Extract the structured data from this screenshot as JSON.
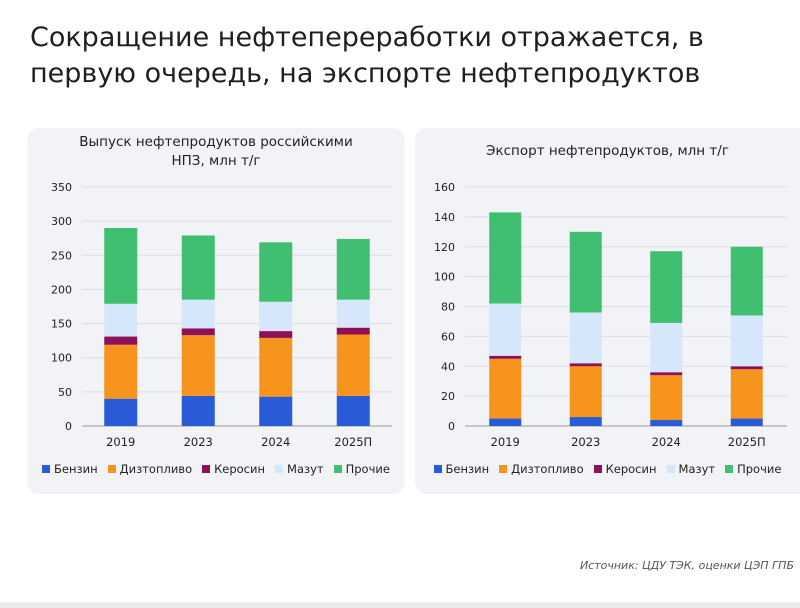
{
  "headline": "Сокращение нефтепереработки отражается, в первую очередь, на экспорте нефтепродуктов",
  "source": "Источник: ЦДУ ТЭК, оценки ЦЭП ГПБ",
  "colors": {
    "Бензин": "#2a5bd7",
    "Дизтопливо": "#f7941d",
    "Керосин": "#8e1157",
    "Мазут": "#d6e6fb",
    "Прочие": "#3fbf6f"
  },
  "legend": [
    "Бензин",
    "Дизтопливо",
    "Керосин",
    "Мазут",
    "Прочие"
  ],
  "chart_data": [
    {
      "type": "bar",
      "stacked": true,
      "title": "Выпуск нефтепродуктов российскими НПЗ, млн т/г",
      "categories": [
        "2019",
        "2023",
        "2024",
        "2025П"
      ],
      "ylim": [
        0,
        350
      ],
      "yticks": [
        0,
        50,
        100,
        150,
        200,
        250,
        300,
        350
      ],
      "grid": true,
      "legend_position": "bottom",
      "series": [
        {
          "name": "Бензин",
          "values": [
            40,
            44,
            43,
            44
          ]
        },
        {
          "name": "Дизтопливо",
          "values": [
            79,
            89,
            86,
            90
          ]
        },
        {
          "name": "Керосин",
          "values": [
            12,
            10,
            10,
            10
          ]
        },
        {
          "name": "Мазут",
          "values": [
            48,
            42,
            43,
            41
          ]
        },
        {
          "name": "Прочие",
          "values": [
            111,
            94,
            87,
            89
          ]
        }
      ]
    },
    {
      "type": "bar",
      "stacked": true,
      "title": "Экспорт нефтепродуктов, млн т/г",
      "categories": [
        "2019",
        "2023",
        "2024",
        "2025П"
      ],
      "ylim": [
        0,
        160
      ],
      "yticks": [
        0,
        20,
        40,
        60,
        80,
        100,
        120,
        140,
        160
      ],
      "grid": true,
      "legend_position": "bottom",
      "series": [
        {
          "name": "Бензин",
          "values": [
            5,
            6,
            4,
            5
          ]
        },
        {
          "name": "Дизтопливо",
          "values": [
            40,
            34,
            30,
            33
          ]
        },
        {
          "name": "Керосин",
          "values": [
            2,
            2,
            2,
            2
          ]
        },
        {
          "name": "Мазут",
          "values": [
            35,
            34,
            33,
            34
          ]
        },
        {
          "name": "Прочие",
          "values": [
            61,
            54,
            48,
            46
          ]
        }
      ]
    }
  ]
}
